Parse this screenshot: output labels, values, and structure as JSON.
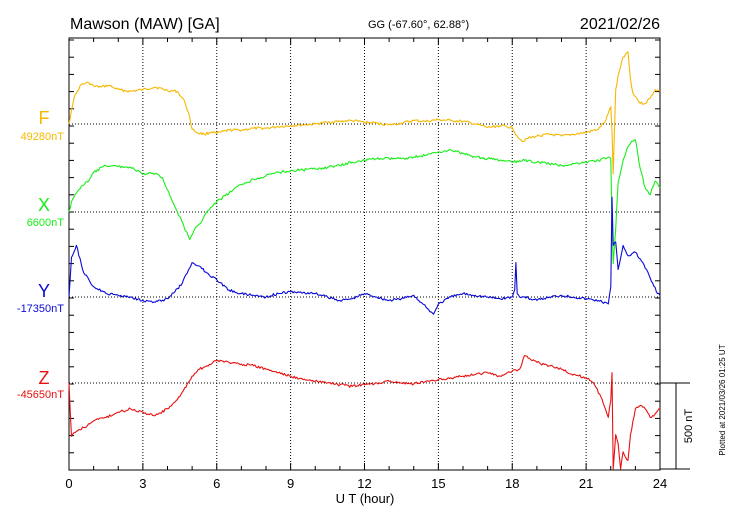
{
  "header": {
    "station": "Mawson (MAW)  [GA]",
    "coords": "GG (-67.60°,  62.88°)",
    "date": "2021/02/26"
  },
  "side_note": "Plotted at 2021/03/26 01:25 UT",
  "scale_bar_label": "500 nT",
  "chart_data": {
    "type": "line",
    "title": "Mawson (MAW)  [GA]",
    "xlabel": "U T (hour)",
    "xlim": [
      0,
      24
    ],
    "xticks": [
      0,
      3,
      6,
      9,
      12,
      15,
      18,
      21,
      24
    ],
    "grid": true,
    "scale_bar_nT": 500,
    "series": [
      {
        "name": "F",
        "baseline_label": "49280nT",
        "color": "#f5b800",
        "x": [
          0,
          0.1,
          0.2,
          0.3,
          0.5,
          0.8,
          1.0,
          1.3,
          1.6,
          2.0,
          2.5,
          3.0,
          3.5,
          4.0,
          4.4,
          4.7,
          4.9,
          5.0,
          5.2,
          5.5,
          5.8,
          6.0,
          6.5,
          7.0,
          7.5,
          8.0,
          8.5,
          9.0,
          9.5,
          10.0,
          10.5,
          11.0,
          11.5,
          12.0,
          12.5,
          13.0,
          13.5,
          14.0,
          14.5,
          15.0,
          15.5,
          16.0,
          16.5,
          17.0,
          17.5,
          18.0,
          18.2,
          18.4,
          18.6,
          19.0,
          19.5,
          20.0,
          20.5,
          21.0,
          21.5,
          21.8,
          22.0,
          22.05,
          22.1,
          22.15,
          22.2,
          22.3,
          22.5,
          22.7,
          22.8,
          22.9,
          23.0,
          23.2,
          23.4,
          23.6,
          23.8,
          24.0
        ],
        "y": [
          0,
          80,
          150,
          180,
          230,
          240,
          220,
          215,
          225,
          200,
          190,
          200,
          215,
          195,
          190,
          130,
          40,
          -30,
          -50,
          -60,
          -45,
          -55,
          -35,
          -35,
          -25,
          -25,
          -15,
          -10,
          -5,
          0,
          10,
          15,
          20,
          10,
          5,
          -5,
          5,
          20,
          15,
          25,
          20,
          15,
          0,
          -20,
          -10,
          -20,
          -70,
          -100,
          -85,
          -70,
          -60,
          -70,
          -60,
          -50,
          -30,
          20,
          100,
          -40,
          -290,
          -50,
          200,
          280,
          390,
          420,
          260,
          180,
          160,
          120,
          120,
          150,
          200,
          190
        ]
      },
      {
        "name": "X",
        "baseline_label": "6600nT",
        "color": "#18ee18",
        "x": [
          0,
          0.1,
          0.3,
          0.5,
          0.8,
          1.0,
          1.5,
          2.0,
          2.5,
          3.0,
          3.5,
          3.8,
          4.2,
          4.6,
          4.9,
          5.1,
          5.3,
          5.6,
          6.0,
          6.5,
          7.0,
          7.5,
          8.0,
          8.5,
          9.0,
          9.5,
          10.0,
          10.5,
          11.0,
          11.5,
          12.0,
          12.5,
          13.0,
          13.5,
          14.0,
          14.5,
          15.0,
          15.5,
          16.0,
          16.5,
          17.0,
          17.5,
          18.0,
          18.5,
          19.0,
          19.5,
          20.0,
          20.5,
          21.0,
          21.5,
          21.9,
          22.0,
          22.05,
          22.1,
          22.2,
          22.3,
          22.5,
          22.7,
          22.8,
          23.0,
          23.2,
          23.4,
          23.6,
          23.8,
          24.0
        ],
        "y": [
          0,
          60,
          110,
          150,
          180,
          230,
          270,
          265,
          260,
          220,
          225,
          200,
          60,
          -60,
          -160,
          -100,
          -70,
          0,
          60,
          110,
          160,
          190,
          210,
          230,
          240,
          245,
          250,
          260,
          270,
          290,
          300,
          310,
          310,
          310,
          320,
          330,
          350,
          360,
          340,
          320,
          310,
          300,
          290,
          300,
          290,
          280,
          270,
          280,
          290,
          300,
          320,
          310,
          -60,
          -300,
          -100,
          170,
          300,
          380,
          400,
          420,
          250,
          140,
          100,
          180,
          140
        ]
      },
      {
        "name": "Y",
        "baseline_label": "-17350nT",
        "color": "#0a0ad8",
        "x": [
          0,
          0.1,
          0.3,
          0.6,
          1.0,
          1.5,
          2.0,
          2.5,
          3.0,
          3.5,
          4.0,
          4.3,
          4.6,
          5.0,
          5.3,
          5.6,
          6.0,
          6.5,
          7.0,
          7.5,
          8.0,
          8.5,
          9.0,
          9.5,
          10.0,
          10.5,
          11.0,
          11.5,
          12.0,
          12.5,
          13.0,
          13.5,
          14.0,
          14.5,
          14.8,
          15.0,
          15.5,
          16.0,
          16.5,
          17.0,
          17.5,
          18.0,
          18.1,
          18.15,
          18.2,
          18.3,
          18.5,
          19.0,
          19.5,
          20.0,
          20.5,
          21.0,
          21.5,
          21.9,
          22.0,
          22.05,
          22.1,
          22.2,
          22.3,
          22.5,
          22.7,
          23.0,
          23.3,
          23.6,
          23.9,
          24.0
        ],
        "y": [
          0,
          230,
          300,
          140,
          60,
          20,
          10,
          0,
          -20,
          -30,
          -10,
          30,
          80,
          200,
          180,
          140,
          100,
          40,
          20,
          10,
          0,
          20,
          30,
          25,
          20,
          0,
          -20,
          -10,
          20,
          0,
          -20,
          -10,
          10,
          -60,
          -100,
          -40,
          0,
          20,
          10,
          0,
          -10,
          0,
          40,
          200,
          20,
          0,
          0,
          -20,
          0,
          10,
          0,
          -10,
          -20,
          -40,
          60,
          580,
          300,
          320,
          160,
          300,
          240,
          260,
          200,
          110,
          20,
          10
        ]
      },
      {
        "name": "Z",
        "baseline_label": "-45650nT",
        "color": "#e81010",
        "x": [
          0,
          0.1,
          0.3,
          0.6,
          1.0,
          1.5,
          2.0,
          2.5,
          3.0,
          3.5,
          4.0,
          4.5,
          5.0,
          5.3,
          5.6,
          6.0,
          6.5,
          7.0,
          7.5,
          8.0,
          8.5,
          9.0,
          9.5,
          10.0,
          10.5,
          11.0,
          11.5,
          12.0,
          12.5,
          13.0,
          13.5,
          14.0,
          14.5,
          15.0,
          15.5,
          16.0,
          16.5,
          17.0,
          17.5,
          18.0,
          18.3,
          18.5,
          18.8,
          19.0,
          19.5,
          20.0,
          20.5,
          21.0,
          21.3,
          21.6,
          21.9,
          22.0,
          22.05,
          22.1,
          22.2,
          22.3,
          22.4,
          22.5,
          22.7,
          22.8,
          23.0,
          23.2,
          23.4,
          23.6,
          23.8,
          24.0
        ],
        "y": [
          0,
          -310,
          -280,
          -260,
          -220,
          -200,
          -170,
          -150,
          -170,
          -190,
          -150,
          -80,
          40,
          80,
          100,
          130,
          120,
          110,
          100,
          80,
          60,
          40,
          20,
          10,
          0,
          -10,
          -20,
          -10,
          0,
          10,
          0,
          -5,
          10,
          20,
          30,
          40,
          50,
          60,
          40,
          70,
          80,
          160,
          130,
          120,
          100,
          80,
          50,
          30,
          0,
          -80,
          -200,
          -100,
          60,
          -500,
          -300,
          -350,
          -500,
          -400,
          -450,
          -300,
          -150,
          -130,
          -150,
          -200,
          -180,
          -150
        ]
      }
    ]
  }
}
